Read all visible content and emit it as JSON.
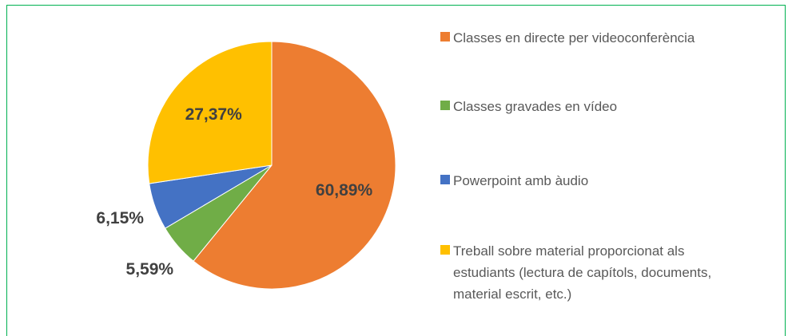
{
  "chart_data": {
    "type": "pie",
    "categories": [
      "Classes en directe per videoconferència",
      "Classes gravades en vídeo",
      "Powerpoint amb àudio",
      "Treball sobre material proporcionat als estudiants (lectura de capítols, documents, material escrit, etc.)"
    ],
    "values": [
      60.89,
      5.59,
      6.15,
      27.37
    ],
    "value_labels": [
      "60,89%",
      "5,59%",
      "6,15%",
      "27,37%"
    ],
    "colors": [
      "#ED7D31",
      "#70AD47",
      "#4472C4",
      "#FFC000"
    ],
    "legend": "right"
  }
}
